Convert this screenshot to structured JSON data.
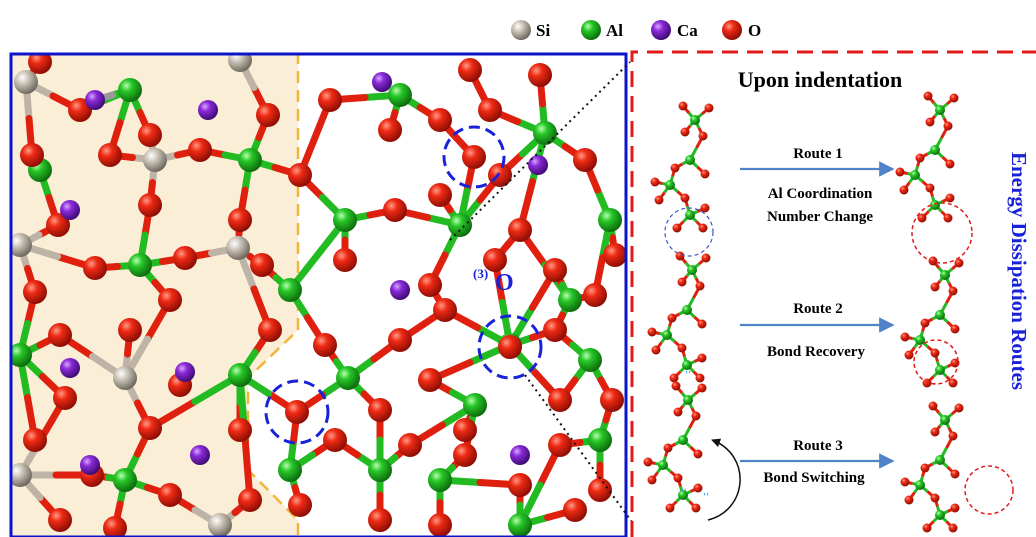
{
  "legend": {
    "items": [
      {
        "label": "Si",
        "color": "#bdb4a7"
      },
      {
        "label": "Al",
        "color": "#22bb22"
      },
      {
        "label": "Ca",
        "color": "#7a24c4"
      },
      {
        "label": "O",
        "color": "#e0200f"
      }
    ]
  },
  "structure": {
    "oxygen_label": "(3)O",
    "oxygen_label_super": "(3)",
    "oxygen_label_main": "O"
  },
  "right_panel": {
    "title": "Upon indentation",
    "vertical_title": "Energy Dissipation Routes",
    "routes": [
      {
        "name": "Route 1",
        "line1": "Al Coordination",
        "line2": "Number Change"
      },
      {
        "name": "Route 2",
        "line1": "Bond Recovery",
        "line2": ""
      },
      {
        "name": "Route 3",
        "line1": "Bond Switching",
        "line2": ""
      }
    ]
  },
  "colors": {
    "si": "#bdb4a7",
    "al": "#22bb22",
    "ca": "#7a24c4",
    "o": "#e0200f",
    "frame_blue": "#0b14c8",
    "frame_red": "#e21a1a",
    "shade": "#fbeed6",
    "shade_border": "#f0b53a",
    "arrow_blue": "#4f82c6",
    "label_blue": "#1a22d9"
  }
}
